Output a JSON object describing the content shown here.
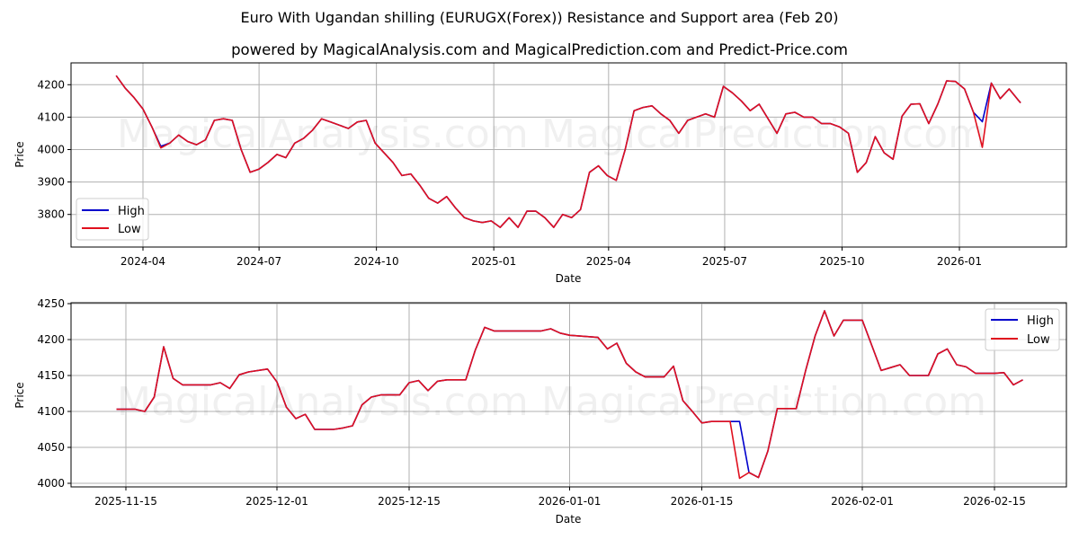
{
  "header": {
    "title": "Euro With Ugandan shilling (EURUGX(Forex)) Resistance and Support area (Feb 20)",
    "subtitle": "powered by MagicalAnalysis.com and MagicalPrediction.com and Predict-Price.com"
  },
  "watermarks": [
    "MagicalAnalysis.com",
    "MagicalPrediction.com"
  ],
  "colors": {
    "high": "#0000cc",
    "low": "#e0101e",
    "grid": "#b0b0b0"
  },
  "chart_data": [
    {
      "type": "line",
      "title": "Euro With Ugandan shilling (EURUGX(Forex)) Resistance and Support area (Feb 20)",
      "xlabel": "Date",
      "ylabel": "Price",
      "x_ticks": [
        "2024-04",
        "2024-07",
        "2024-10",
        "2025-01",
        "2025-04",
        "2025-07",
        "2025-10",
        "2026-01"
      ],
      "y_ticks": [
        3800,
        3900,
        4000,
        4100,
        4200
      ],
      "ylim": [
        3700,
        4265
      ],
      "grid": true,
      "legend": {
        "position": "lower left",
        "entries": [
          "High",
          "Low"
        ]
      },
      "x": [
        "2024-03-11",
        "2024-03-18",
        "2024-03-25",
        "2024-04-01",
        "2024-04-08",
        "2024-04-15",
        "2024-04-22",
        "2024-04-29",
        "2024-05-06",
        "2024-05-13",
        "2024-05-20",
        "2024-05-27",
        "2024-06-03",
        "2024-06-10",
        "2024-06-17",
        "2024-06-24",
        "2024-07-01",
        "2024-07-08",
        "2024-07-15",
        "2024-07-22",
        "2024-07-29",
        "2024-08-05",
        "2024-08-12",
        "2024-08-19",
        "2024-08-26",
        "2024-09-02",
        "2024-09-09",
        "2024-09-16",
        "2024-09-23",
        "2024-09-30",
        "2024-10-07",
        "2024-10-14",
        "2024-10-21",
        "2024-10-28",
        "2024-11-04",
        "2024-11-11",
        "2024-11-18",
        "2024-11-25",
        "2024-12-02",
        "2024-12-09",
        "2024-12-16",
        "2024-12-23",
        "2024-12-30",
        "2025-01-06",
        "2025-01-13",
        "2025-01-20",
        "2025-01-27",
        "2025-02-03",
        "2025-02-10",
        "2025-02-17",
        "2025-02-24",
        "2025-03-03",
        "2025-03-10",
        "2025-03-17",
        "2025-03-24",
        "2025-03-31",
        "2025-04-07",
        "2025-04-14",
        "2025-04-21",
        "2025-04-28",
        "2025-05-05",
        "2025-05-12",
        "2025-05-19",
        "2025-05-26",
        "2025-06-02",
        "2025-06-09",
        "2025-06-16",
        "2025-06-23",
        "2025-06-30",
        "2025-07-07",
        "2025-07-14",
        "2025-07-21",
        "2025-07-28",
        "2025-08-04",
        "2025-08-11",
        "2025-08-18",
        "2025-08-25",
        "2025-09-01",
        "2025-09-08",
        "2025-09-15",
        "2025-09-22",
        "2025-09-29",
        "2025-10-06",
        "2025-10-13",
        "2025-10-20",
        "2025-10-27",
        "2025-11-03",
        "2025-11-10",
        "2025-11-17",
        "2025-11-24",
        "2025-12-01",
        "2025-12-08",
        "2025-12-15",
        "2025-12-22",
        "2025-12-29",
        "2026-01-05",
        "2026-01-12",
        "2026-01-19",
        "2026-01-26",
        "2026-02-02",
        "2026-02-09",
        "2026-02-16",
        "2026-02-18"
      ],
      "series": [
        {
          "name": "High",
          "color": "#0000cc",
          "values": [
            4228,
            4190,
            4160,
            4125,
            4070,
            4010,
            4020,
            4045,
            4025,
            4015,
            4030,
            4090,
            4095,
            4090,
            4000,
            3930,
            3940,
            3960,
            3985,
            3975,
            4020,
            4035,
            4060,
            4095,
            4085,
            4075,
            4065,
            4085,
            4090,
            4020,
            3990,
            3960,
            3920,
            3925,
            3890,
            3850,
            3835,
            3855,
            3820,
            3790,
            3780,
            3775,
            3780,
            3760,
            3790,
            3760,
            3810,
            3810,
            3790,
            3760,
            3800,
            3790,
            3815,
            3930,
            3950,
            3920,
            3905,
            4000,
            4120,
            4130,
            4135,
            4110,
            4090,
            4050,
            4090,
            4100,
            4110,
            4100,
            4195,
            4175,
            4150,
            4120,
            4140,
            4095,
            4050,
            4110,
            4115,
            4100,
            4100,
            4080,
            4080,
            4070,
            4050,
            3930,
            3960,
            4040,
            3990,
            3970,
            4103,
            4140,
            4141,
            4080,
            4140,
            4212,
            4210,
            4187,
            4115,
            4086,
            4205,
            4157,
            4187,
            4153,
            4144
          ]
        },
        {
          "name": "Low",
          "color": "#e0101e",
          "values": [
            4228,
            4190,
            4160,
            4125,
            4070,
            4005,
            4020,
            4045,
            4025,
            4015,
            4030,
            4090,
            4095,
            4090,
            4000,
            3930,
            3940,
            3960,
            3985,
            3975,
            4020,
            4035,
            4060,
            4095,
            4085,
            4075,
            4065,
            4085,
            4090,
            4020,
            3990,
            3960,
            3920,
            3925,
            3890,
            3850,
            3835,
            3855,
            3820,
            3790,
            3780,
            3775,
            3780,
            3760,
            3790,
            3760,
            3810,
            3810,
            3790,
            3760,
            3800,
            3790,
            3815,
            3930,
            3950,
            3920,
            3905,
            4000,
            4120,
            4130,
            4135,
            4110,
            4090,
            4050,
            4090,
            4100,
            4110,
            4100,
            4195,
            4175,
            4150,
            4120,
            4140,
            4095,
            4050,
            4110,
            4115,
            4100,
            4100,
            4080,
            4080,
            4070,
            4050,
            3930,
            3960,
            4040,
            3990,
            3970,
            4103,
            4140,
            4141,
            4080,
            4140,
            4212,
            4210,
            4187,
            4115,
            4007,
            4205,
            4157,
            4187,
            4153,
            4144
          ]
        }
      ]
    },
    {
      "type": "line",
      "xlabel": "Date",
      "ylabel": "Price",
      "x_ticks": [
        "2025-11-15",
        "2025-12-01",
        "2025-12-15",
        "2026-01-01",
        "2026-01-15",
        "2026-02-01",
        "2026-02-15"
      ],
      "y_ticks": [
        4000,
        4050,
        4100,
        4150,
        4200,
        4250
      ],
      "ylim": [
        3986,
        4250
      ],
      "grid": true,
      "legend": {
        "position": "upper right",
        "entries": [
          "High",
          "Low"
        ]
      },
      "x": [
        "2025-11-14",
        "2025-11-16",
        "2025-11-17",
        "2025-11-18",
        "2025-11-19",
        "2025-11-20",
        "2025-11-21",
        "2025-11-24",
        "2025-11-25",
        "2025-11-26",
        "2025-11-27",
        "2025-11-28",
        "2025-11-30",
        "2025-12-01",
        "2025-12-02",
        "2025-12-03",
        "2025-12-04",
        "2025-12-05",
        "2025-12-07",
        "2025-12-08",
        "2025-12-09",
        "2025-12-10",
        "2025-12-11",
        "2025-12-12",
        "2025-12-14",
        "2025-12-15",
        "2025-12-16",
        "2025-12-17",
        "2025-12-18",
        "2025-12-19",
        "2025-12-21",
        "2025-12-22",
        "2025-12-23",
        "2025-12-24",
        "2025-12-29",
        "2025-12-30",
        "2025-12-31",
        "2026-01-01",
        "2026-01-04",
        "2026-01-05",
        "2026-01-06",
        "2026-01-07",
        "2026-01-08",
        "2026-01-09",
        "2026-01-11",
        "2026-01-12",
        "2026-01-13",
        "2026-01-14",
        "2026-01-15",
        "2026-01-16",
        "2026-01-18",
        "2026-01-19",
        "2026-01-20",
        "2026-01-21",
        "2026-01-22",
        "2026-01-23",
        "2026-01-25",
        "2026-01-26",
        "2026-01-27",
        "2026-01-28",
        "2026-01-29",
        "2026-01-30",
        "2026-02-01",
        "2026-02-02",
        "2026-02-03",
        "2026-02-04",
        "2026-02-05",
        "2026-02-06",
        "2026-02-08",
        "2026-02-09",
        "2026-02-10",
        "2026-02-11",
        "2026-02-12",
        "2026-02-13",
        "2026-02-15",
        "2026-02-16",
        "2026-02-17",
        "2026-02-18"
      ],
      "series": [
        {
          "name": "High",
          "color": "#0000cc",
          "values": [
            4103,
            4103,
            4100,
            4120,
            4190,
            4146,
            4137,
            4137,
            4140,
            4132,
            4151,
            4155,
            4159,
            4141,
            4106,
            4090,
            4096,
            4075,
            4075,
            4077,
            4080,
            4109,
            4120,
            4123,
            4123,
            4140,
            4143,
            4129,
            4142,
            4144,
            4144,
            4185,
            4217,
            4212,
            4212,
            4215,
            4209,
            4206,
            4203,
            4187,
            4195,
            4167,
            4155,
            4148,
            4148,
            4163,
            4115,
            4100,
            4084,
            4086,
            4086,
            4086,
            4015,
            4008,
            4045,
            4104,
            4104,
            4157,
            4205,
            4240,
            4205,
            4227,
            4227,
            4192,
            4157,
            4161,
            4165,
            4150,
            4150,
            4180,
            4187,
            4165,
            4162,
            4153,
            4153,
            4154,
            4137,
            4144
          ]
        },
        {
          "name": "Low",
          "color": "#e0101e",
          "values": [
            4103,
            4103,
            4100,
            4120,
            4190,
            4146,
            4137,
            4137,
            4140,
            4132,
            4151,
            4155,
            4159,
            4141,
            4106,
            4090,
            4096,
            4075,
            4075,
            4077,
            4080,
            4109,
            4120,
            4123,
            4123,
            4140,
            4143,
            4129,
            4142,
            4144,
            4144,
            4185,
            4217,
            4212,
            4212,
            4215,
            4209,
            4206,
            4203,
            4187,
            4195,
            4167,
            4155,
            4148,
            4148,
            4163,
            4115,
            4100,
            4084,
            4086,
            4086,
            4007,
            4015,
            4008,
            4045,
            4104,
            4104,
            4157,
            4205,
            4240,
            4205,
            4227,
            4227,
            4192,
            4157,
            4161,
            4165,
            4150,
            4150,
            4180,
            4187,
            4165,
            4162,
            4153,
            4153,
            4154,
            4137,
            4144
          ]
        }
      ]
    }
  ]
}
